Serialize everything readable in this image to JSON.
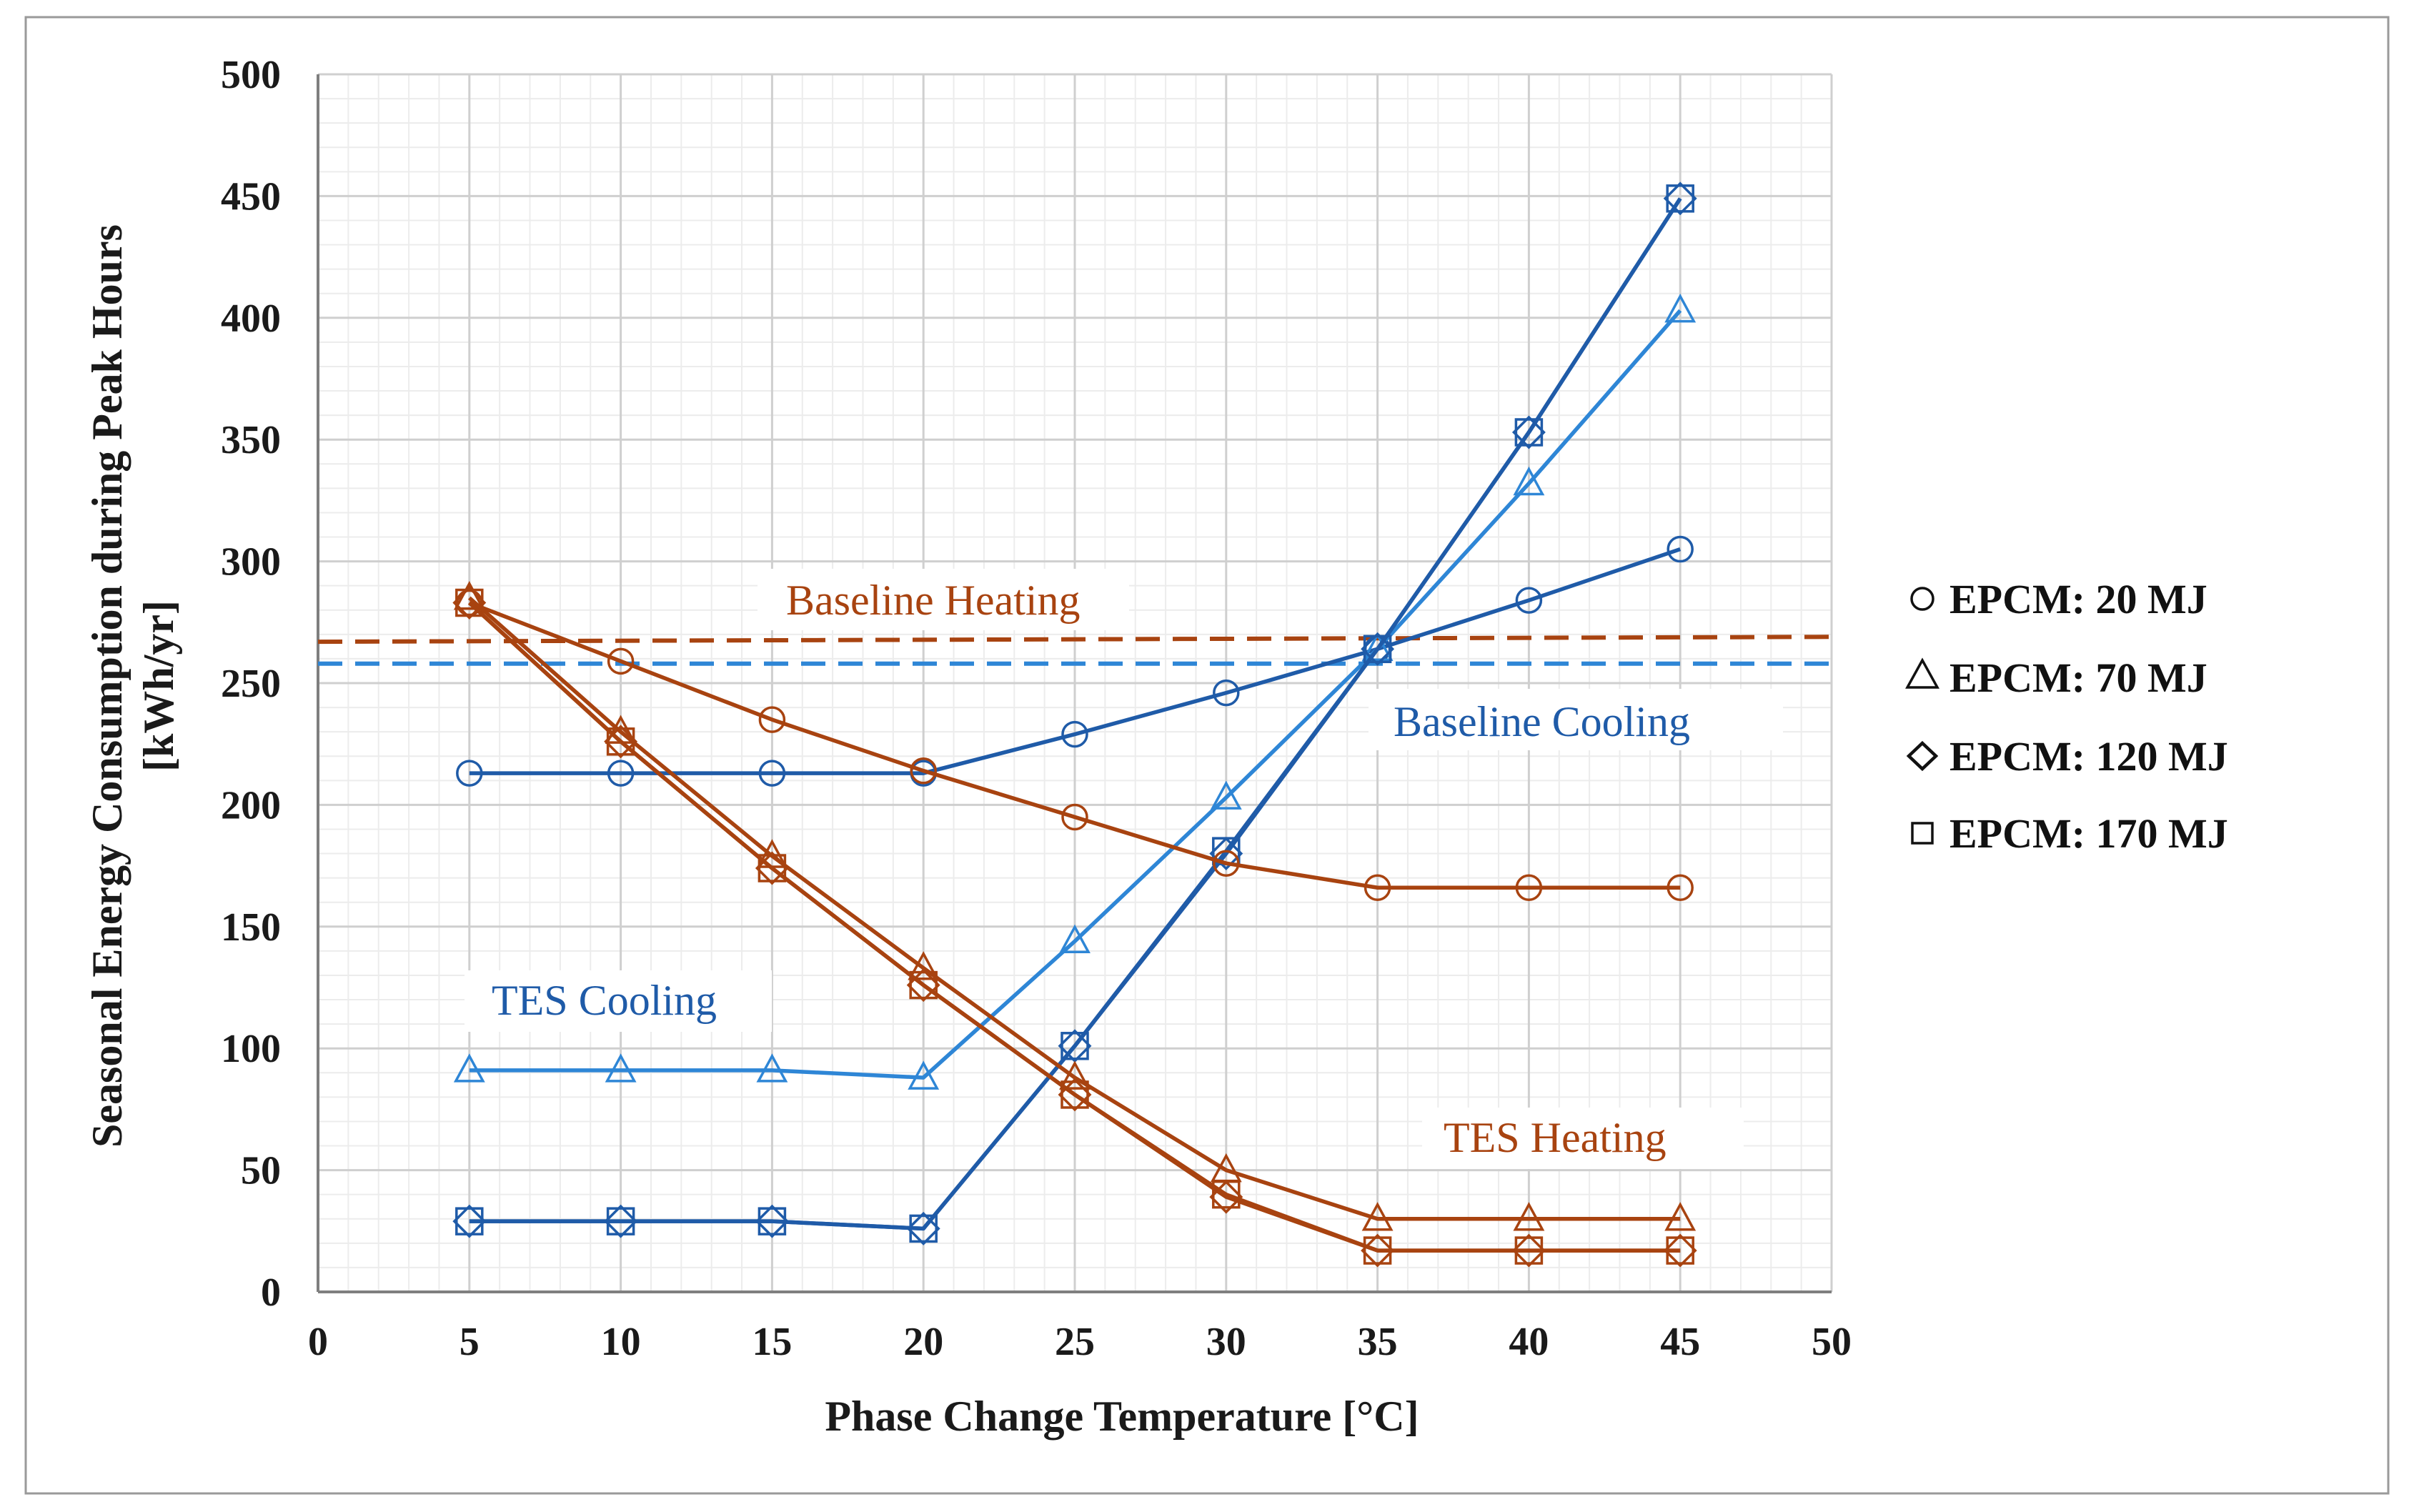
{
  "chart_data": {
    "type": "line",
    "title": "",
    "xlabel": "Phase Change Temperature [°C]",
    "ylabel_line1": "Seasonal Energy Consumption during Peak Hours",
    "ylabel_line2": "[kWh/yr]",
    "xlim": [
      0,
      50
    ],
    "ylim": [
      0,
      500
    ],
    "xticks": [
      0,
      5,
      10,
      15,
      20,
      25,
      30,
      35,
      40,
      45,
      50
    ],
    "yticks": [
      0,
      50,
      100,
      150,
      200,
      250,
      300,
      350,
      400,
      450,
      500
    ],
    "x": [
      5,
      10,
      15,
      20,
      25,
      30,
      35,
      40,
      45
    ],
    "grid": true,
    "colors": {
      "cooling_dark": "#1f5ba8",
      "cooling_light": "#2e86d6",
      "heating": "#a84310",
      "baseline_cooling": "#2e86d6",
      "baseline_heating": "#a84310"
    },
    "series": [
      {
        "name": "TES Cooling - EPCM: 20 MJ",
        "group": "cooling",
        "marker": "circle",
        "values": [
          213,
          213,
          213,
          213,
          229,
          246,
          264,
          284,
          305
        ]
      },
      {
        "name": "TES Cooling - EPCM: 70 MJ",
        "group": "cooling",
        "marker": "triangle",
        "values": [
          91,
          91,
          91,
          88,
          144,
          203,
          264,
          332,
          403
        ]
      },
      {
        "name": "TES Cooling - EPCM: 120 MJ",
        "group": "cooling",
        "marker": "diamond",
        "values": [
          29,
          29,
          29,
          26,
          101,
          180,
          264,
          353,
          449
        ]
      },
      {
        "name": "TES Cooling - EPCM: 170 MJ",
        "group": "cooling",
        "marker": "square",
        "values": [
          29,
          29,
          29,
          26,
          101,
          181,
          264,
          353,
          449
        ]
      },
      {
        "name": "TES Heating - EPCM: 20 MJ",
        "group": "heating",
        "marker": "circle",
        "values": [
          283,
          259,
          235,
          214,
          195,
          176,
          166,
          166,
          166
        ]
      },
      {
        "name": "TES Heating - EPCM: 70 MJ",
        "group": "heating",
        "marker": "triangle",
        "values": [
          285,
          230,
          179,
          133,
          88,
          50,
          30,
          30,
          30
        ]
      },
      {
        "name": "TES Heating - EPCM: 120 MJ",
        "group": "heating",
        "marker": "diamond",
        "values": [
          283,
          226,
          174,
          126,
          81,
          39,
          17,
          17,
          17
        ]
      },
      {
        "name": "TES Heating - EPCM: 170 MJ",
        "group": "heating",
        "marker": "square",
        "values": [
          283,
          226,
          174,
          126,
          81,
          40,
          17,
          17,
          17
        ]
      }
    ],
    "baselines": [
      {
        "name": "Baseline Heating",
        "group": "heating",
        "x": [
          0,
          50
        ],
        "values": [
          267,
          269
        ]
      },
      {
        "name": "Baseline Cooling",
        "group": "cooling",
        "x": [
          0,
          50
        ],
        "values": [
          258,
          258
        ]
      }
    ],
    "annotations": {
      "baseline_heating": "Baseline Heating",
      "baseline_cooling": "Baseline Cooling",
      "tes_cooling": "TES Cooling",
      "tes_heating": "TES Heating"
    },
    "legend_position": "right",
    "legend": [
      {
        "marker": "circle",
        "label": "EPCM: 20 MJ"
      },
      {
        "marker": "triangle",
        "label": "EPCM: 70 MJ"
      },
      {
        "marker": "diamond",
        "label": "EPCM: 120 MJ"
      },
      {
        "marker": "square",
        "label": "EPCM: 170 MJ"
      }
    ]
  }
}
